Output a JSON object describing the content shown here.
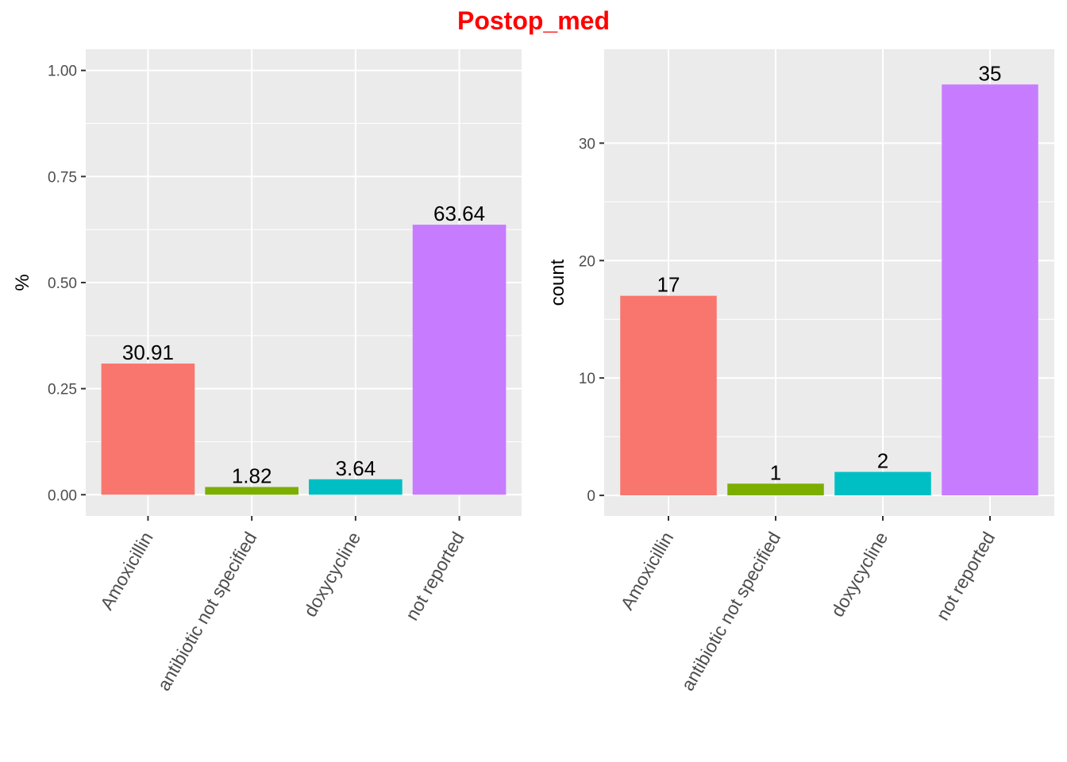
{
  "title": "Postop_med",
  "colors": {
    "title": "#ff0000",
    "panel_background": "#ebebeb",
    "grid": "#ffffff",
    "bars": [
      "#f8766d",
      "#7cae00",
      "#00bfc4",
      "#c77cff"
    ]
  },
  "chart_data": [
    {
      "type": "bar",
      "categories": [
        "Amoxicillin",
        "antibiotic not specified",
        "doxycycline",
        "not reported"
      ],
      "values": [
        0.3091,
        0.0182,
        0.0364,
        0.6364
      ],
      "data_labels": [
        "30.91",
        "1.82",
        "3.64",
        "63.64"
      ],
      "xlabel": "",
      "ylabel": "%",
      "ylim": [
        -0.05,
        1.05
      ],
      "yticks": [
        0,
        0.25,
        0.5,
        0.75,
        1
      ],
      "ytick_labels": [
        "0.00",
        "0.25",
        "0.50",
        "0.75",
        "1.00"
      ],
      "grid": true,
      "legend": "none"
    },
    {
      "type": "bar",
      "categories": [
        "Amoxicillin",
        "antibiotic not specified",
        "doxycycline",
        "not reported"
      ],
      "values": [
        17,
        1,
        2,
        35
      ],
      "data_labels": [
        "17",
        "1",
        "2",
        "35"
      ],
      "xlabel": "",
      "ylabel": "count",
      "ylim": [
        -1.75,
        38
      ],
      "yticks": [
        0,
        10,
        20,
        30
      ],
      "ytick_labels": [
        "0",
        "10",
        "20",
        "30"
      ],
      "grid": true,
      "legend": "none"
    }
  ]
}
